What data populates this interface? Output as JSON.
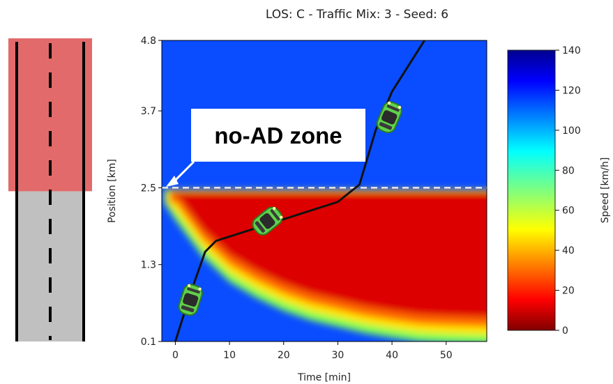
{
  "chart_data": {
    "type": "heatmap",
    "title": "LOS: C - Traffic Mix: 3 - Seed: 6",
    "xlabel": "Time [min]",
    "ylabel": "Position [km]",
    "xlim": [
      -2.5,
      57.5
    ],
    "ylim": [
      0.1,
      4.8
    ],
    "x_ticks": [
      "0",
      "10",
      "20",
      "30",
      "40",
      "50"
    ],
    "x_tick_values": [
      0,
      10,
      20,
      30,
      40,
      50
    ],
    "y_ticks": [
      "0.1",
      "1.3",
      "2.5",
      "3.7",
      "4.8"
    ],
    "y_tick_values": [
      0.1,
      1.3,
      2.5,
      3.7,
      4.8
    ],
    "colorbar": {
      "label": "Speed [km/h]",
      "range": [
        0,
        140
      ],
      "ticks": [
        "0",
        "20",
        "40",
        "60",
        "80",
        "100",
        "120",
        "140"
      ],
      "tick_values": [
        0,
        20,
        40,
        60,
        80,
        100,
        120,
        140
      ],
      "colormap": "jet"
    },
    "speed_field": {
      "free_flow_speed": 112,
      "congested_speed": 4,
      "congestion_top_km": 2.42,
      "congestion_lower_boundary": [
        {
          "t": 0,
          "pos": 2.42
        },
        {
          "t": 5,
          "pos": 1.85
        },
        {
          "t": 10,
          "pos": 1.45
        },
        {
          "t": 15,
          "pos": 1.2
        },
        {
          "t": 20,
          "pos": 1.0
        },
        {
          "t": 25,
          "pos": 0.85
        },
        {
          "t": 30,
          "pos": 0.75
        },
        {
          "t": 35,
          "pos": 0.65
        },
        {
          "t": 40,
          "pos": 0.58
        },
        {
          "t": 45,
          "pos": 0.52
        },
        {
          "t": 50,
          "pos": 0.5
        },
        {
          "t": 57.5,
          "pos": 0.48
        }
      ]
    },
    "vehicle_trajectory": [
      {
        "t": 0,
        "pos": 0.1
      },
      {
        "t": 1.5,
        "pos": 0.5
      },
      {
        "t": 3,
        "pos": 0.9
      },
      {
        "t": 5.5,
        "pos": 1.5
      },
      {
        "t": 7.5,
        "pos": 1.67
      },
      {
        "t": 30,
        "pos": 2.28
      },
      {
        "t": 34,
        "pos": 2.55
      },
      {
        "t": 37,
        "pos": 3.4
      },
      {
        "t": 40,
        "pos": 4.0
      },
      {
        "t": 46,
        "pos": 4.8
      }
    ],
    "no_ad_zone_start_km": 2.5,
    "annotation": "no-AD zone"
  },
  "colors": {
    "no_ad_zone": "#e26a6a",
    "road": "#c0c0c0",
    "car": "#5fd24a",
    "trajectory": "#111111"
  },
  "icons": [
    "road-icon",
    "car-icon"
  ]
}
